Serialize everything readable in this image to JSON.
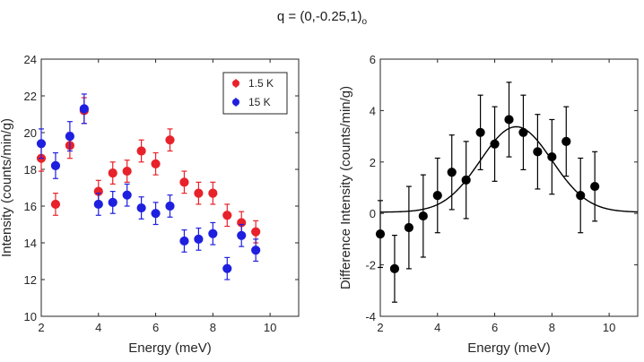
{
  "figure": {
    "title_main": "q = (0,-0.25,1)",
    "title_subscript": "o"
  },
  "chart_data": [
    {
      "type": "scatter",
      "title": "",
      "xlabel": "Energy (meV)",
      "ylabel": "Intensity (counts/min/g)",
      "xlim": [
        2,
        11
      ],
      "ylim": [
        10,
        24
      ],
      "xticks": [
        2,
        4,
        6,
        8,
        10
      ],
      "yticks": [
        10,
        12,
        14,
        16,
        18,
        20,
        22,
        24
      ],
      "grid": false,
      "legend_position": "top-right",
      "series": [
        {
          "name": "1.5 K",
          "color": "#e8222a",
          "x": [
            2,
            2.5,
            3,
            3.5,
            4,
            4.5,
            5,
            5.5,
            6,
            6.5,
            7,
            7.5,
            8,
            8.5,
            9,
            9.5
          ],
          "y": [
            18.6,
            16.1,
            19.3,
            21.2,
            16.8,
            17.8,
            17.9,
            19.0,
            18.3,
            19.6,
            17.3,
            16.7,
            16.7,
            15.5,
            15.1,
            14.6
          ],
          "err": [
            0.7,
            0.6,
            0.7,
            0.7,
            0.6,
            0.6,
            0.6,
            0.6,
            0.6,
            0.6,
            0.6,
            0.6,
            0.6,
            0.6,
            0.6,
            0.6
          ]
        },
        {
          "name": "15 K",
          "color": "#1f1fe0",
          "x": [
            2,
            2.5,
            3,
            3.5,
            4,
            4.5,
            5,
            5.5,
            6,
            6.5,
            7,
            7.5,
            8,
            8.5,
            9,
            9.5
          ],
          "y": [
            19.4,
            18.2,
            19.8,
            21.3,
            16.1,
            16.2,
            16.6,
            15.9,
            15.6,
            16.0,
            14.1,
            14.2,
            14.5,
            12.6,
            14.4,
            13.6
          ],
          "err": [
            0.8,
            0.7,
            0.8,
            0.8,
            0.6,
            0.6,
            0.6,
            0.6,
            0.6,
            0.6,
            0.6,
            0.6,
            0.6,
            0.6,
            0.6,
            0.6
          ]
        }
      ]
    },
    {
      "type": "scatter",
      "title": "",
      "xlabel": "Energy (meV)",
      "ylabel": "Difference Intensity (counts/min/g)",
      "xlim": [
        2,
        11
      ],
      "ylim": [
        -4,
        6
      ],
      "xticks": [
        2,
        4,
        6,
        8,
        10
      ],
      "yticks": [
        -4,
        -2,
        0,
        2,
        4,
        6
      ],
      "grid": false,
      "series": [
        {
          "name": "difference",
          "color": "#000000",
          "x": [
            2,
            2.5,
            3,
            3.5,
            4,
            4.5,
            5,
            5.5,
            6,
            6.5,
            7,
            7.5,
            8,
            8.5,
            9,
            9.5
          ],
          "y": [
            -0.8,
            -2.15,
            -0.55,
            -0.1,
            0.7,
            1.6,
            1.3,
            3.15,
            2.7,
            3.65,
            3.15,
            2.4,
            2.2,
            2.8,
            0.7,
            1.05
          ],
          "err": [
            1.3,
            1.3,
            1.6,
            1.6,
            1.45,
            1.45,
            1.5,
            1.45,
            1.45,
            1.45,
            1.45,
            1.45,
            1.45,
            1.35,
            1.45,
            1.35
          ]
        }
      ],
      "fit": {
        "name": "gaussian fit",
        "color": "#000000",
        "baseline": 0.05,
        "amplitude": 3.32,
        "center": 6.75,
        "sigma": 1.25
      }
    }
  ]
}
